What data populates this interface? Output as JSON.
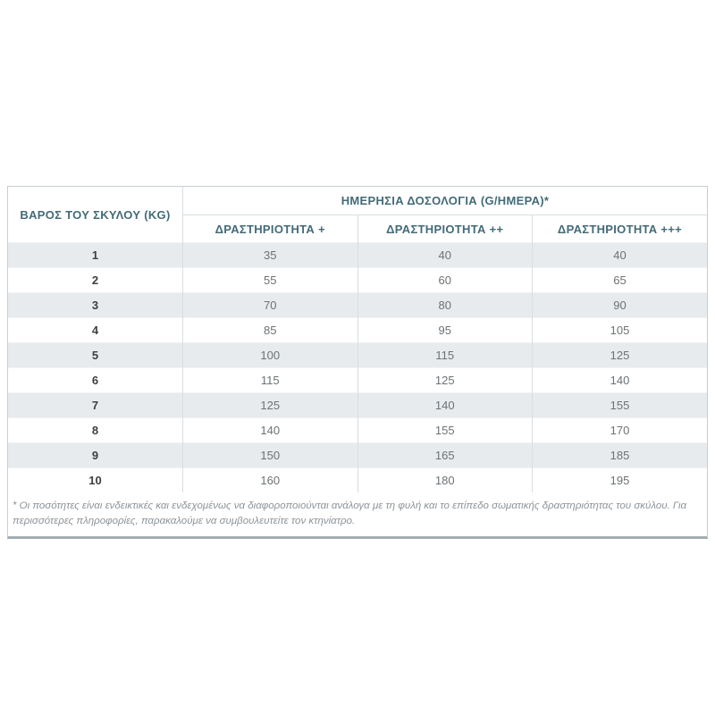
{
  "table": {
    "weight_header": "ΒΑΡΟΣ ΤΟΥ ΣΚΥΛΟΥ (KG)",
    "main_header": "ΗΜΕΡΗΣΙΑ ΔΟΣΟΛΟΓΙΑ (G/ΗΜΕΡΑ)*",
    "activity_headers": [
      "ΔΡΑΣΤΗΡΙΟΤΗΤΑ +",
      "ΔΡΑΣΤΗΡΙΟΤΗΤΑ ++",
      "ΔΡΑΣΤΗΡΙΟΤΗΤΑ +++"
    ],
    "rows": [
      {
        "weight": "1",
        "values": [
          "35",
          "40",
          "40"
        ]
      },
      {
        "weight": "2",
        "values": [
          "55",
          "60",
          "65"
        ]
      },
      {
        "weight": "3",
        "values": [
          "70",
          "80",
          "90"
        ]
      },
      {
        "weight": "4",
        "values": [
          "85",
          "95",
          "105"
        ]
      },
      {
        "weight": "5",
        "values": [
          "100",
          "115",
          "125"
        ]
      },
      {
        "weight": "6",
        "values": [
          "115",
          "125",
          "140"
        ]
      },
      {
        "weight": "7",
        "values": [
          "125",
          "140",
          "155"
        ]
      },
      {
        "weight": "8",
        "values": [
          "140",
          "155",
          "170"
        ]
      },
      {
        "weight": "9",
        "values": [
          "150",
          "165",
          "185"
        ]
      },
      {
        "weight": "10",
        "values": [
          "160",
          "180",
          "195"
        ]
      }
    ]
  },
  "footnote": "* Οι ποσότητες είναι ενδεικτικές και ενδεχομένως να διαφοροποιούνται ανάλογα με τη φυλή και το επίπεδο σωματικής δραστηριότητας του σκύλου. Για περισσότερες πληροφορίες, παρακαλούμε να συμβουλευτείτε τον κτηνίατρο.",
  "colors": {
    "header_text": "#436b78",
    "row_stripe": "#e8ebed",
    "outer_border": "#c7cfd3",
    "bottom_border": "#a4aeb2",
    "weight_text": "#3c4043",
    "value_text": "#6c7276",
    "footnote_text": "#8d9398"
  }
}
